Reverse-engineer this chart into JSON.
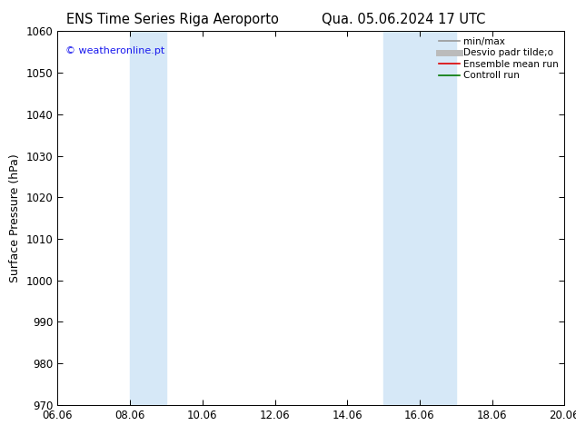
{
  "title_left": "ENS Time Series Riga Aeroporto",
  "title_right": "Qua. 05.06.2024 17 UTC",
  "ylabel": "Surface Pressure (hPa)",
  "ylim": [
    970,
    1060
  ],
  "yticks": [
    970,
    980,
    990,
    1000,
    1010,
    1020,
    1030,
    1040,
    1050,
    1060
  ],
  "xlim_num": [
    0,
    14
  ],
  "xtick_labels": [
    "06.06",
    "08.06",
    "10.06",
    "12.06",
    "14.06",
    "16.06",
    "18.06",
    "20.06"
  ],
  "xtick_positions": [
    0,
    2,
    4,
    6,
    8,
    10,
    12,
    14
  ],
  "shaded_bands": [
    {
      "xmin": 2.0,
      "xmax": 3.0
    },
    {
      "xmin": 9.0,
      "xmax": 11.0
    }
  ],
  "shade_color": "#d6e8f7",
  "watermark_text": "© weatheronline.pt",
  "watermark_color": "#1a1aee",
  "legend_entries": [
    {
      "label": "min/max",
      "color": "#999999",
      "lw": 1.2,
      "type": "line"
    },
    {
      "label": "Desvio padr tilde;o",
      "color": "#bbbbbb",
      "lw": 5,
      "type": "line"
    },
    {
      "label": "Ensemble mean run",
      "color": "#dd0000",
      "lw": 1.2,
      "type": "line"
    },
    {
      "label": "Controll run",
      "color": "#007700",
      "lw": 1.2,
      "type": "line"
    }
  ],
  "bg_color": "#ffffff",
  "title_fontsize": 10.5,
  "ylabel_fontsize": 9,
  "tick_fontsize": 8.5,
  "watermark_fontsize": 8,
  "legend_fontsize": 7.5
}
